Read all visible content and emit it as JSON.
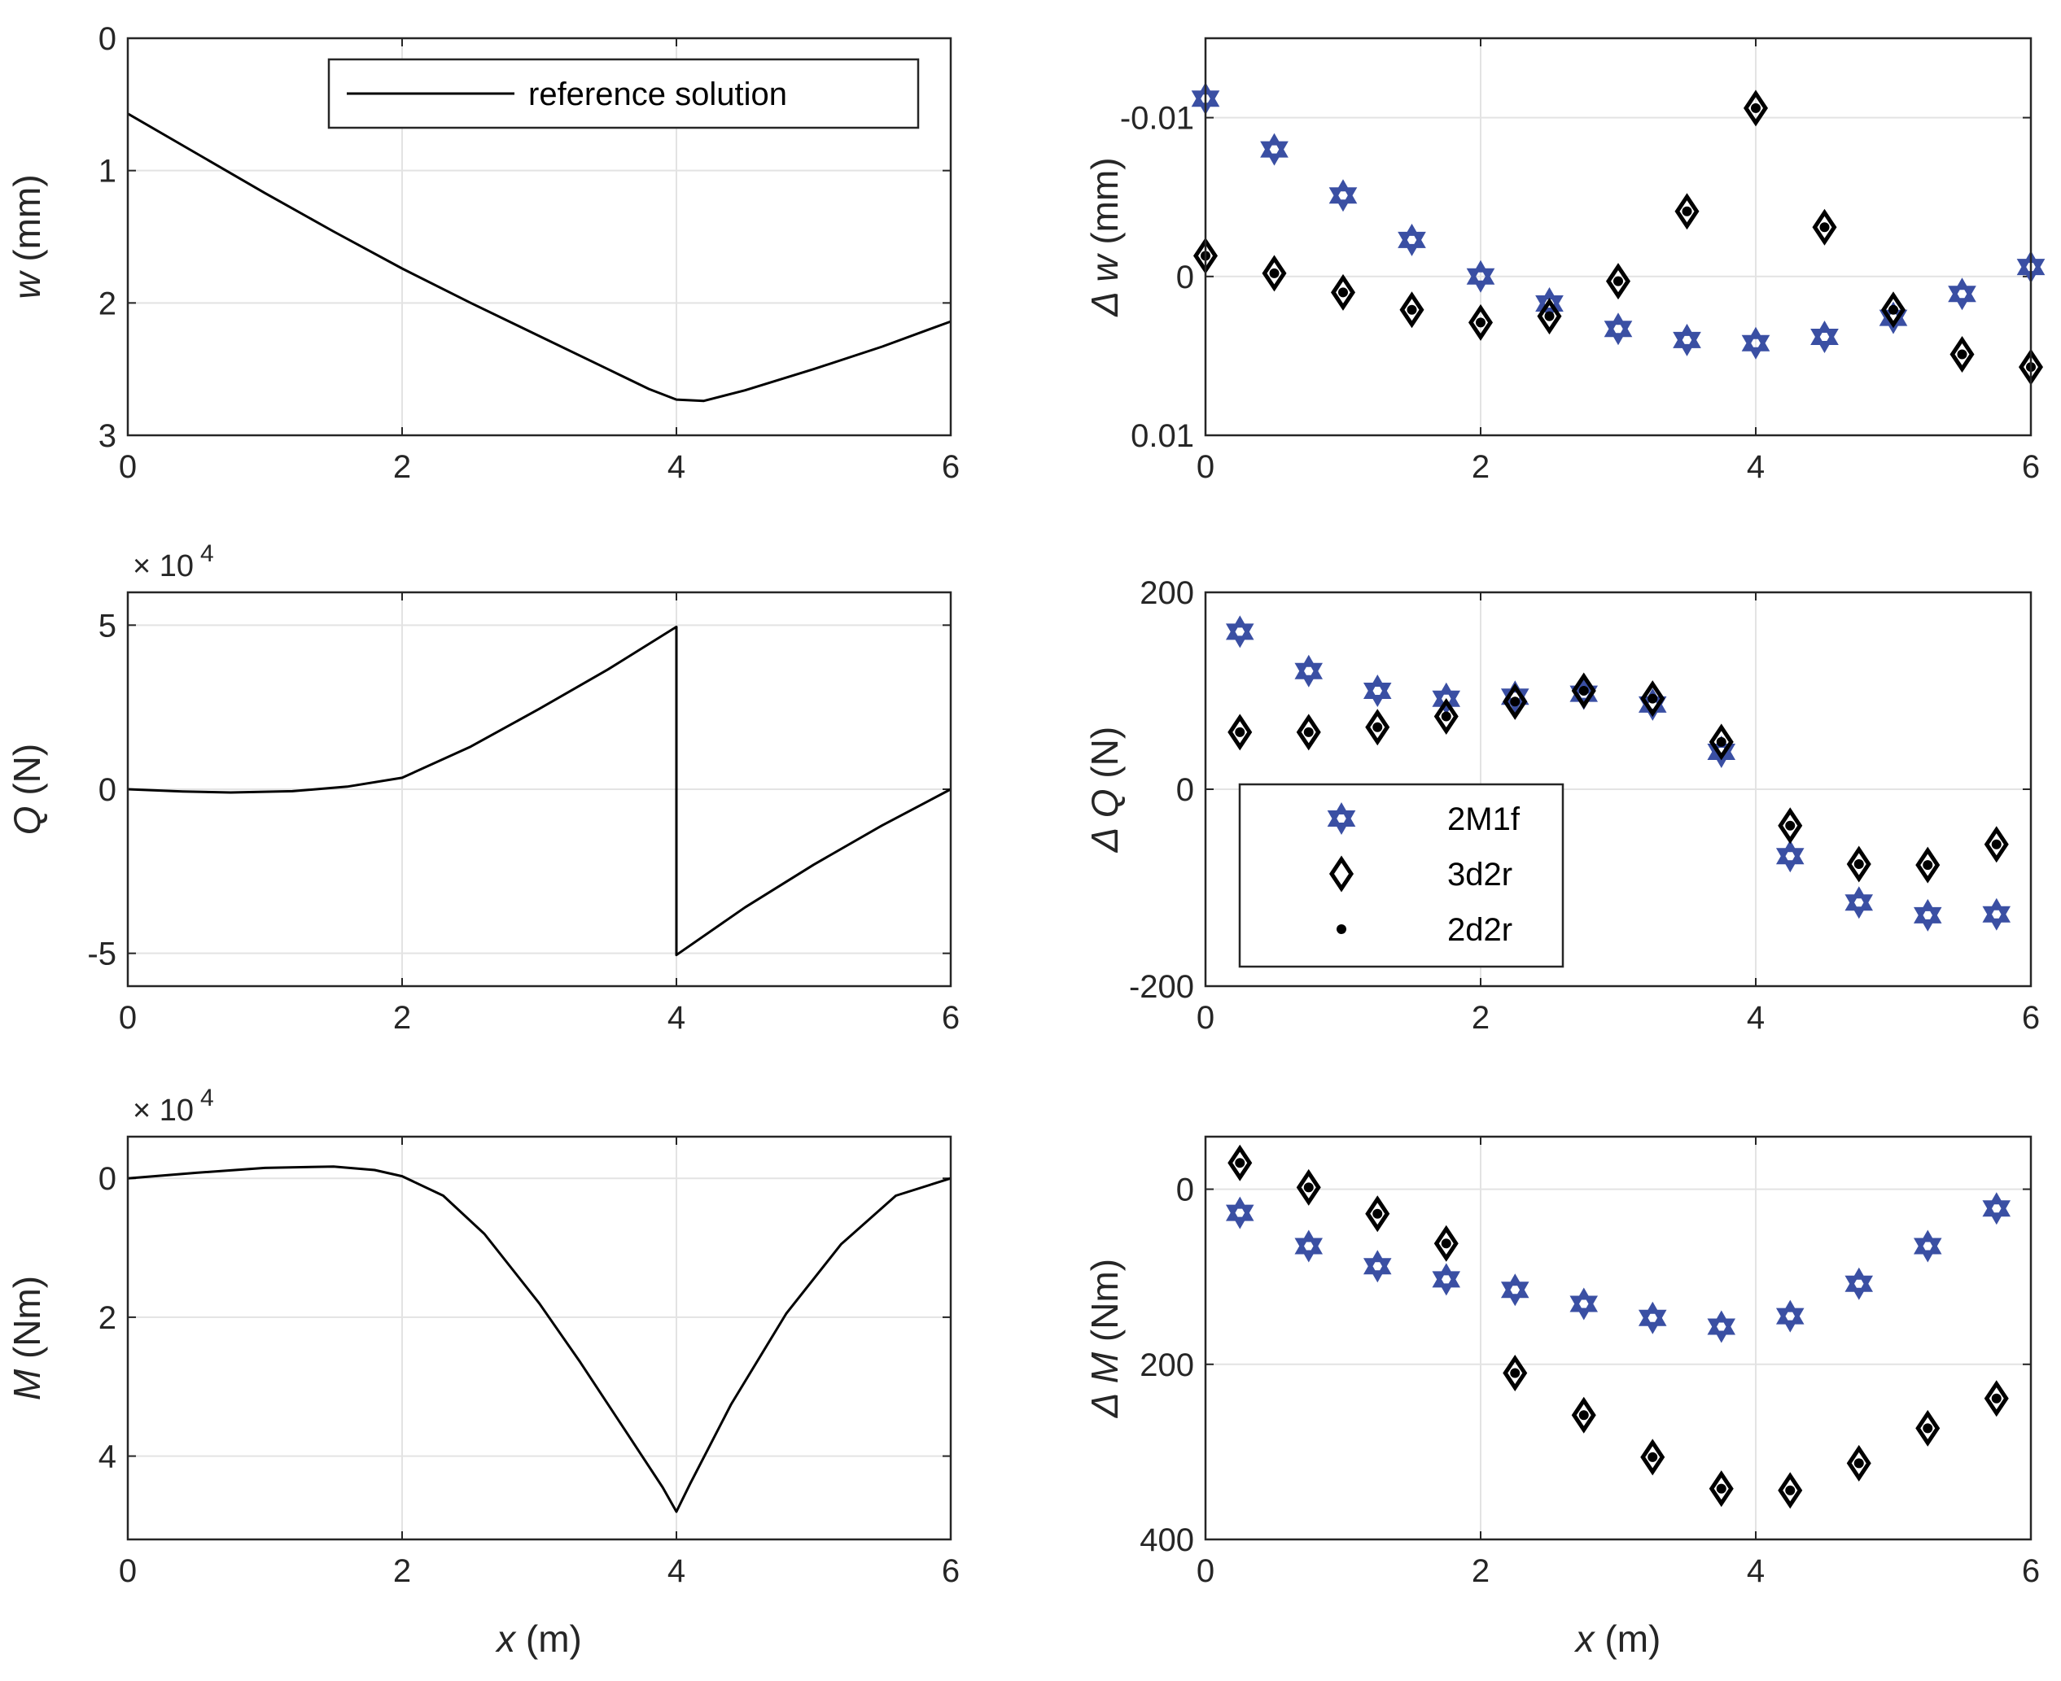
{
  "figure": {
    "x_axis_label": "x (m)",
    "x_ticks": [
      "0",
      "2",
      "4",
      "6"
    ]
  },
  "chart_data": [
    {
      "id": "w",
      "type": "line",
      "ylabel_sym": "w",
      "ylabel_unit": " (mm)",
      "xlim": [
        0,
        6
      ],
      "ylim": [
        0,
        3
      ],
      "y_reversed": true,
      "y_ticks": [
        "0",
        "1",
        "2",
        "3"
      ],
      "legend": [
        "reference solution"
      ],
      "series": [
        {
          "name": "reference solution",
          "x": [
            0,
            0.5,
            1,
            1.5,
            2,
            2.5,
            3,
            3.5,
            3.8,
            4,
            4.2,
            4.5,
            5,
            5.5,
            6
          ],
          "y": [
            0.57,
            0.87,
            1.17,
            1.46,
            1.74,
            2.0,
            2.25,
            2.5,
            2.65,
            2.73,
            2.74,
            2.66,
            2.5,
            2.33,
            2.14
          ]
        }
      ]
    },
    {
      "id": "dw",
      "type": "scatter",
      "ylabel_sym": "Δ w",
      "ylabel_unit": " (mm)",
      "xlim": [
        0,
        6
      ],
      "ylim": [
        -0.015,
        0.01
      ],
      "y_reversed": true,
      "y_ticks": [
        "-0.01",
        "0",
        "0.01"
      ],
      "y_tick_values": [
        -0.01,
        0,
        0.01
      ],
      "series": [
        {
          "name": "2M1f",
          "marker": "hexagram",
          "color": "#3a4fa3",
          "x": [
            0,
            0.5,
            1,
            1.5,
            2,
            2.5,
            3,
            3.5,
            4,
            4.5,
            5,
            5.5,
            6
          ],
          "y": [
            -0.0112,
            -0.008,
            -0.0051,
            -0.0023,
            0.0,
            0.0017,
            0.0033,
            0.004,
            0.0042,
            0.0038,
            0.0026,
            0.0011,
            -0.0006
          ]
        },
        {
          "name": "3d2r",
          "marker": "diamond",
          "color": "#000000",
          "x": [
            0,
            0.5,
            1,
            1.5,
            2,
            2.5,
            3,
            3.5,
            4,
            4.5,
            5,
            5.5,
            6
          ],
          "y": [
            -0.0013,
            -0.0002,
            0.001,
            0.0021,
            0.0029,
            0.0025,
            0.0003,
            -0.0041,
            -0.0106,
            -0.0031,
            0.0021,
            0.0049,
            0.0057
          ]
        },
        {
          "name": "2d2r",
          "marker": "dot",
          "color": "#000000",
          "x": [
            0,
            0.5,
            1,
            1.5,
            2,
            2.5,
            3,
            3.5,
            4,
            4.5,
            5,
            5.5,
            6
          ],
          "y": [
            -0.0013,
            -0.0002,
            0.001,
            0.0021,
            0.0029,
            0.0025,
            0.0003,
            -0.0041,
            -0.0106,
            -0.0031,
            0.0021,
            0.0049,
            0.0057
          ]
        }
      ]
    },
    {
      "id": "Q",
      "type": "line",
      "ylabel_sym": "Q",
      "ylabel_unit": " (N)",
      "multiplier": "× 10",
      "multiplier_exp": "4",
      "xlim": [
        0,
        6
      ],
      "ylim": [
        -6,
        6
      ],
      "y_reversed": false,
      "y_ticks": [
        "-5",
        "0",
        "5"
      ],
      "y_tick_values": [
        -5,
        0,
        5
      ],
      "series": [
        {
          "name": "reference solution",
          "x": [
            0,
            0.4,
            0.75,
            1.2,
            1.6,
            2,
            2.5,
            3,
            3.5,
            4,
            4,
            4.5,
            5,
            5.5,
            6
          ],
          "y": [
            0,
            -0.07,
            -0.1,
            -0.06,
            0.08,
            0.35,
            1.3,
            2.45,
            3.65,
            4.95,
            -5.05,
            -3.6,
            -2.3,
            -1.1,
            0
          ]
        }
      ]
    },
    {
      "id": "dQ",
      "type": "scatter",
      "ylabel_sym": "Δ Q",
      "ylabel_unit": " (N)",
      "xlim": [
        0,
        6
      ],
      "ylim": [
        -200,
        200
      ],
      "y_reversed": false,
      "y_ticks": [
        "-200",
        "0",
        "200"
      ],
      "y_tick_values": [
        -200,
        0,
        200
      ],
      "legend": [
        "2M1f",
        "3d2r",
        "2d2r"
      ],
      "series": [
        {
          "name": "2M1f",
          "marker": "hexagram",
          "color": "#3a4fa3",
          "x": [
            0.25,
            0.75,
            1.25,
            1.75,
            2.25,
            2.75,
            3.25,
            3.75,
            4.25,
            4.75,
            5.25,
            5.75
          ],
          "y": [
            160,
            120,
            100,
            92,
            94,
            97,
            86,
            38,
            -68,
            -115,
            -128,
            -127
          ]
        },
        {
          "name": "3d2r",
          "marker": "diamond",
          "color": "#000000",
          "x": [
            0.25,
            0.75,
            1.25,
            1.75,
            2.25,
            2.75,
            3.25,
            3.75,
            4.25,
            4.75,
            5.25,
            5.75
          ],
          "y": [
            58,
            58,
            63,
            74,
            89,
            100,
            92,
            48,
            -37,
            -76,
            -77,
            -56
          ]
        },
        {
          "name": "2d2r",
          "marker": "dot",
          "color": "#000000",
          "x": [
            0.25,
            0.75,
            1.25,
            1.75,
            2.25,
            2.75,
            3.25,
            3.75,
            4.25,
            4.75,
            5.25,
            5.75
          ],
          "y": [
            58,
            58,
            63,
            74,
            89,
            100,
            92,
            48,
            -37,
            -76,
            -77,
            -56
          ]
        }
      ]
    },
    {
      "id": "M",
      "type": "line",
      "ylabel_sym": "M",
      "ylabel_unit": " (Nm)",
      "multiplier": "× 10",
      "multiplier_exp": "4",
      "xlim": [
        0,
        6
      ],
      "ylim": [
        -0.6,
        5.2
      ],
      "y_reversed": true,
      "y_ticks": [
        "0",
        "2",
        "4"
      ],
      "y_tick_values": [
        0,
        2,
        4
      ],
      "series": [
        {
          "name": "reference solution",
          "x": [
            0,
            0.5,
            1,
            1.5,
            1.8,
            2,
            2.3,
            2.6,
            3,
            3.3,
            3.6,
            3.9,
            4,
            4.1,
            4.4,
            4.8,
            5.2,
            5.6,
            6
          ],
          "y": [
            0,
            -0.08,
            -0.15,
            -0.17,
            -0.12,
            -0.03,
            0.25,
            0.8,
            1.8,
            2.65,
            3.55,
            4.45,
            4.8,
            4.4,
            3.25,
            1.95,
            0.95,
            0.25,
            0
          ]
        }
      ]
    },
    {
      "id": "dM",
      "type": "scatter",
      "ylabel_sym": "Δ M",
      "ylabel_unit": " (Nm)",
      "xlim": [
        0,
        6
      ],
      "ylim": [
        -60,
        400
      ],
      "y_reversed": true,
      "y_ticks": [
        "0",
        "200",
        "400"
      ],
      "y_tick_values": [
        0,
        200,
        400
      ],
      "series": [
        {
          "name": "2M1f",
          "marker": "hexagram",
          "color": "#3a4fa3",
          "x": [
            0.25,
            0.75,
            1.25,
            1.75,
            2.25,
            2.75,
            3.25,
            3.75,
            4.25,
            4.75,
            5.25,
            5.75
          ],
          "y": [
            27,
            65,
            88,
            103,
            115,
            131,
            147,
            157,
            145,
            108,
            65,
            22
          ]
        },
        {
          "name": "3d2r",
          "marker": "diamond",
          "color": "#000000",
          "x": [
            0.25,
            0.75,
            1.25,
            1.75,
            2.25,
            2.75,
            3.25,
            3.75,
            4.25,
            4.75,
            5.25,
            5.75
          ],
          "y": [
            -30,
            -2,
            28,
            62,
            210,
            258,
            306,
            342,
            344,
            313,
            273,
            239
          ]
        },
        {
          "name": "2d2r",
          "marker": "dot",
          "color": "#000000",
          "x": [
            0.25,
            0.75,
            1.25,
            1.75,
            2.25,
            2.75,
            3.25,
            3.75,
            4.25,
            4.75,
            5.25,
            5.75
          ],
          "y": [
            -30,
            -2,
            28,
            62,
            210,
            258,
            306,
            342,
            344,
            313,
            273,
            239
          ]
        }
      ]
    }
  ]
}
